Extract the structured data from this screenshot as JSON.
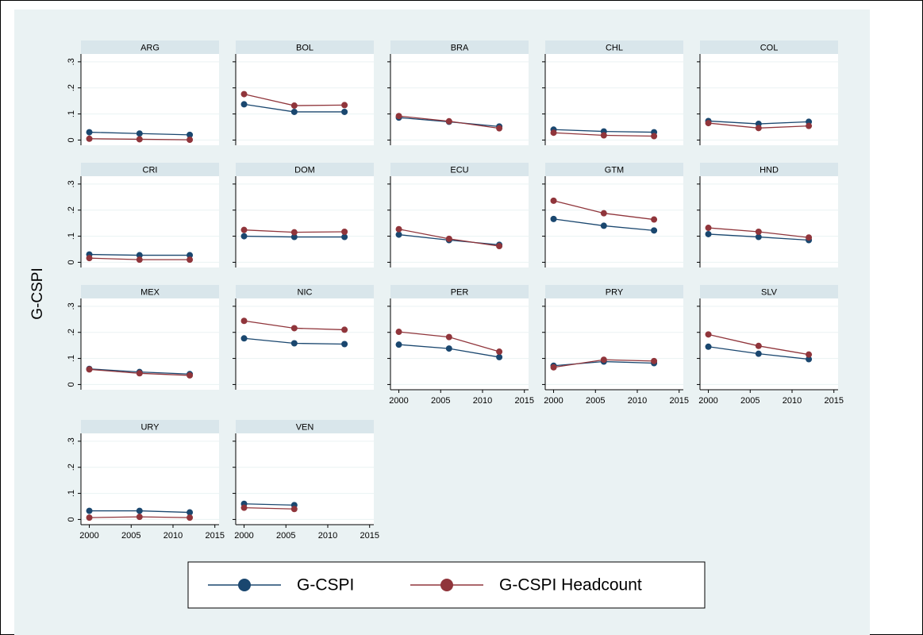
{
  "chart_data": {
    "type": "line",
    "y_label": "G-CSPI",
    "x": [
      2000,
      2006,
      2012
    ],
    "xlim": [
      1999,
      2015.5
    ],
    "xticks": [
      2000,
      2005,
      2010,
      2015
    ],
    "ylim": [
      -0.02,
      0.33
    ],
    "yticks": [
      0,
      {
        "value": 0.1,
        "label": ".1"
      },
      {
        "value": 0.2,
        "label": ".2"
      },
      {
        "value": 0.3,
        "label": ".3"
      }
    ],
    "grid": true,
    "legend": "bottom",
    "series": [
      {
        "name": "G-CSPI",
        "color": "#1a476f"
      },
      {
        "name": "G-CSPI Headcount",
        "color": "#90353b"
      }
    ],
    "panels": [
      {
        "title": "ARG",
        "series": [
          [
            0.03,
            0.025,
            0.02
          ],
          [
            0.005,
            0.003,
            0.001
          ]
        ]
      },
      {
        "title": "BOL",
        "series": [
          [
            0.137,
            0.108,
            0.108
          ],
          [
            0.176,
            0.132,
            0.134
          ]
        ]
      },
      {
        "title": "BRA",
        "series": [
          [
            0.086,
            0.07,
            0.052
          ],
          [
            0.092,
            0.072,
            0.045
          ]
        ]
      },
      {
        "title": "CHL",
        "series": [
          [
            0.04,
            0.033,
            0.03
          ],
          [
            0.028,
            0.018,
            0.015
          ]
        ]
      },
      {
        "title": "COL",
        "series": [
          [
            0.073,
            0.062,
            0.07
          ],
          [
            0.065,
            0.046,
            0.054
          ]
        ]
      },
      {
        "title": "CRI",
        "series": [
          [
            0.03,
            0.027,
            0.027
          ],
          [
            0.016,
            0.01,
            0.01
          ]
        ]
      },
      {
        "title": "DOM",
        "series": [
          [
            0.1,
            0.097,
            0.097
          ],
          [
            0.124,
            0.115,
            0.117
          ]
        ]
      },
      {
        "title": "ECU",
        "series": [
          [
            0.106,
            0.085,
            0.067
          ],
          [
            0.127,
            0.09,
            0.062
          ]
        ]
      },
      {
        "title": "GTM",
        "series": [
          [
            0.166,
            0.14,
            0.122
          ],
          [
            0.236,
            0.188,
            0.164
          ]
        ]
      },
      {
        "title": "HND",
        "series": [
          [
            0.108,
            0.097,
            0.085
          ],
          [
            0.132,
            0.117,
            0.095
          ]
        ]
      },
      {
        "title": "MEX",
        "series": [
          [
            0.06,
            0.048,
            0.04
          ],
          [
            0.058,
            0.043,
            0.035
          ]
        ]
      },
      {
        "title": "NIC",
        "series": [
          [
            0.177,
            0.158,
            0.155
          ],
          [
            0.244,
            0.216,
            0.21
          ]
        ]
      },
      {
        "title": "PER",
        "series": [
          [
            0.153,
            0.138,
            0.105
          ],
          [
            0.202,
            0.182,
            0.126
          ]
        ]
      },
      {
        "title": "PRY",
        "series": [
          [
            0.072,
            0.088,
            0.082
          ],
          [
            0.066,
            0.095,
            0.09
          ]
        ]
      },
      {
        "title": "SLV",
        "series": [
          [
            0.145,
            0.118,
            0.097
          ],
          [
            0.192,
            0.148,
            0.115
          ]
        ]
      },
      {
        "title": "URY",
        "series": [
          [
            0.033,
            0.033,
            0.027
          ],
          [
            0.007,
            0.01,
            0.007
          ]
        ]
      },
      {
        "title": "VEN",
        "series": [
          [
            0.06,
            0.055,
            null
          ],
          [
            0.045,
            0.04,
            null
          ]
        ]
      }
    ]
  }
}
